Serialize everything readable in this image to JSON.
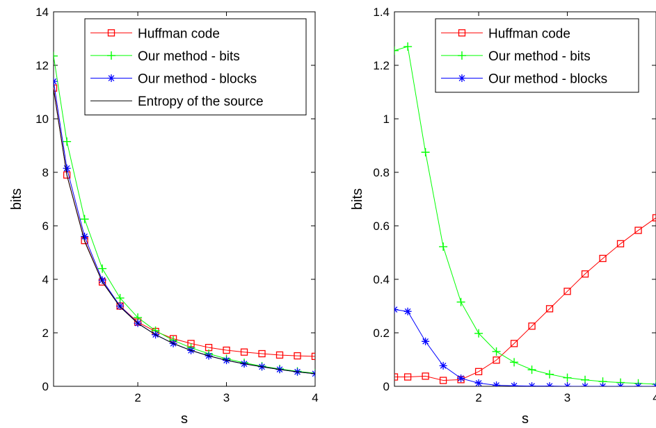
{
  "chart_data": [
    {
      "type": "line",
      "xlabel": "s",
      "ylabel": "bits",
      "xlim": [
        1.05,
        4
      ],
      "ylim": [
        0,
        14
      ],
      "xticks": [
        2,
        3,
        4
      ],
      "yticks": [
        0,
        2,
        4,
        6,
        8,
        10,
        12,
        14
      ],
      "grid": false,
      "legend_position": "top-right",
      "x": [
        1.05,
        1.2,
        1.4,
        1.6,
        1.8,
        2.0,
        2.2,
        2.4,
        2.6,
        2.8,
        3.0,
        3.2,
        3.4,
        3.6,
        3.8,
        4.0
      ],
      "series": [
        {
          "name": "Huffman code",
          "color": "#ff0000",
          "marker": "square",
          "values": [
            11.15,
            7.9,
            5.45,
            3.9,
            3.0,
            2.4,
            2.05,
            1.78,
            1.6,
            1.45,
            1.35,
            1.28,
            1.22,
            1.17,
            1.14,
            1.12
          ]
        },
        {
          "name": "Our method - bits",
          "color": "#00ff00",
          "marker": "plus",
          "values": [
            12.35,
            9.15,
            6.25,
            4.4,
            3.3,
            2.57,
            2.08,
            1.72,
            1.44,
            1.22,
            1.03,
            0.88,
            0.75,
            0.65,
            0.56,
            0.49
          ]
        },
        {
          "name": "Our method - blocks",
          "color": "#0000ff",
          "marker": "asterisk",
          "values": [
            11.4,
            8.15,
            5.6,
            3.97,
            3.0,
            2.36,
            1.93,
            1.6,
            1.34,
            1.14,
            0.97,
            0.84,
            0.73,
            0.63,
            0.54,
            0.47
          ]
        },
        {
          "name": "Entropy of the source",
          "color": "#000000",
          "marker": "none",
          "values": [
            11.1,
            7.9,
            5.42,
            3.9,
            2.97,
            2.35,
            1.93,
            1.6,
            1.34,
            1.14,
            0.97,
            0.84,
            0.73,
            0.63,
            0.54,
            0.47
          ]
        }
      ]
    },
    {
      "type": "line",
      "xlabel": "s",
      "ylabel": "bits",
      "xlim": [
        1.05,
        4
      ],
      "ylim": [
        0,
        1.4
      ],
      "xticks": [
        2,
        3,
        4
      ],
      "yticks": [
        0,
        0.2,
        0.4,
        0.6,
        0.8,
        1,
        1.2,
        1.4
      ],
      "grid": false,
      "legend_position": "top-right",
      "x": [
        1.05,
        1.2,
        1.4,
        1.6,
        1.8,
        2.0,
        2.2,
        2.4,
        2.6,
        2.8,
        3.0,
        3.2,
        3.4,
        3.6,
        3.8,
        4.0
      ],
      "series": [
        {
          "name": "Huffman code",
          "color": "#ff0000",
          "marker": "square",
          "values": [
            0.035,
            0.035,
            0.038,
            0.022,
            0.025,
            0.055,
            0.098,
            0.16,
            0.225,
            0.29,
            0.355,
            0.42,
            0.478,
            0.533,
            0.583,
            0.63
          ]
        },
        {
          "name": "Our method - bits",
          "color": "#00ff00",
          "marker": "plus",
          "values": [
            1.255,
            1.27,
            0.875,
            0.522,
            0.315,
            0.198,
            0.13,
            0.09,
            0.062,
            0.045,
            0.032,
            0.024,
            0.018,
            0.014,
            0.011,
            0.008
          ]
        },
        {
          "name": "Our method - blocks",
          "color": "#0000ff",
          "marker": "asterisk",
          "values": [
            0.287,
            0.28,
            0.168,
            0.077,
            0.03,
            0.012,
            0.004,
            0.002,
            0.001,
            0.001,
            0.0,
            0.0,
            0.0,
            0.0,
            0.0,
            0.0
          ]
        }
      ]
    }
  ]
}
